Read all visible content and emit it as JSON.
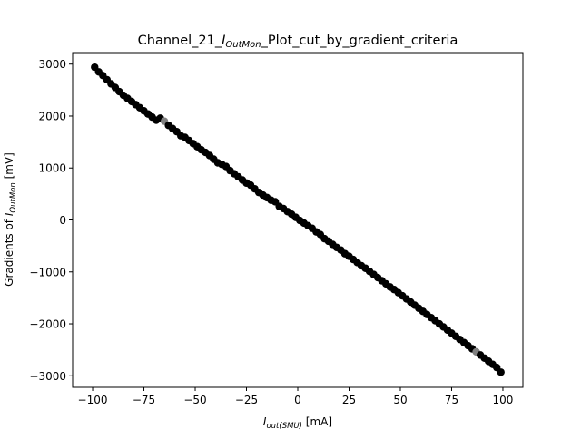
{
  "chart_data": {
    "type": "scatter",
    "title": "Channel_21_",
    "title_sym": "I",
    "title_sub": "OutMon",
    "title_suffix": "_Plot_cut_by_gradient_criteria",
    "xlabel_sym": "I",
    "xlabel_sub": "out(SMU)",
    "xlabel_suffix": " [mA]",
    "ylabel_prefix": "Gradients of ",
    "ylabel_sym": "I",
    "ylabel_sub": "OutMon",
    "ylabel_suffix": " [mV]",
    "xlim": [
      -109.75,
      109.75
    ],
    "ylim": [
      -3222,
      3222
    ],
    "xticks": [
      -100,
      -75,
      -50,
      -25,
      0,
      25,
      50,
      75,
      100
    ],
    "yticks": [
      -3000,
      -2000,
      -1000,
      0,
      1000,
      2000,
      3000
    ],
    "grid": false,
    "point_color": "#000000",
    "highlight_color": "#808080",
    "slope_mV_per_mA": -29.4,
    "highlight_x": [
      -65,
      87
    ],
    "series": [
      {
        "x": [
          -99,
          -97,
          -95,
          -93,
          -91,
          -89,
          -87,
          -85,
          -83,
          -81,
          -79,
          -77,
          -75,
          -73,
          -71,
          -69,
          -67,
          -65,
          -63,
          -61,
          -59,
          -57,
          -55,
          -53,
          -51,
          -49,
          -47,
          -45,
          -43,
          -41,
          -39,
          -37,
          -35,
          -33,
          -31,
          -29,
          -27,
          -25,
          -23,
          -21,
          -19,
          -17,
          -15,
          -13,
          -11,
          -9,
          -7,
          -5,
          -3,
          -1,
          1,
          3,
          5,
          7,
          9,
          11,
          13,
          15,
          17,
          19,
          21,
          23,
          25,
          27,
          29,
          31,
          33,
          35,
          37,
          39,
          41,
          43,
          45,
          47,
          49,
          51,
          53,
          55,
          57,
          59,
          61,
          63,
          65,
          67,
          69,
          71,
          73,
          75,
          77,
          79,
          81,
          83,
          85,
          87,
          89,
          91,
          93,
          95,
          97,
          99
        ],
        "y": [
          2940,
          2850,
          2780,
          2700,
          2620,
          2550,
          2470,
          2400,
          2340,
          2280,
          2220,
          2160,
          2100,
          2040,
          1980,
          1920,
          1960,
          1900,
          1820,
          1760,
          1700,
          1620,
          1590,
          1530,
          1470,
          1410,
          1350,
          1300,
          1240,
          1170,
          1100,
          1070,
          1030,
          950,
          890,
          830,
          770,
          710,
          670,
          600,
          530,
          480,
          430,
          380,
          350,
          260,
          220,
          160,
          110,
          50,
          -10,
          -60,
          -110,
          -160,
          -230,
          -280,
          -360,
          -410,
          -470,
          -530,
          -580,
          -650,
          -700,
          -760,
          -820,
          -880,
          -930,
          -990,
          -1050,
          -1110,
          -1170,
          -1230,
          -1290,
          -1340,
          -1400,
          -1460,
          -1520,
          -1580,
          -1640,
          -1700,
          -1760,
          -1820,
          -1880,
          -1940,
          -2000,
          -2060,
          -2120,
          -2180,
          -2240,
          -2300,
          -2360,
          -2420,
          -2480,
          -2540,
          -2600,
          -2660,
          -2720,
          -2780,
          -2840,
          -2930
        ]
      }
    ]
  }
}
